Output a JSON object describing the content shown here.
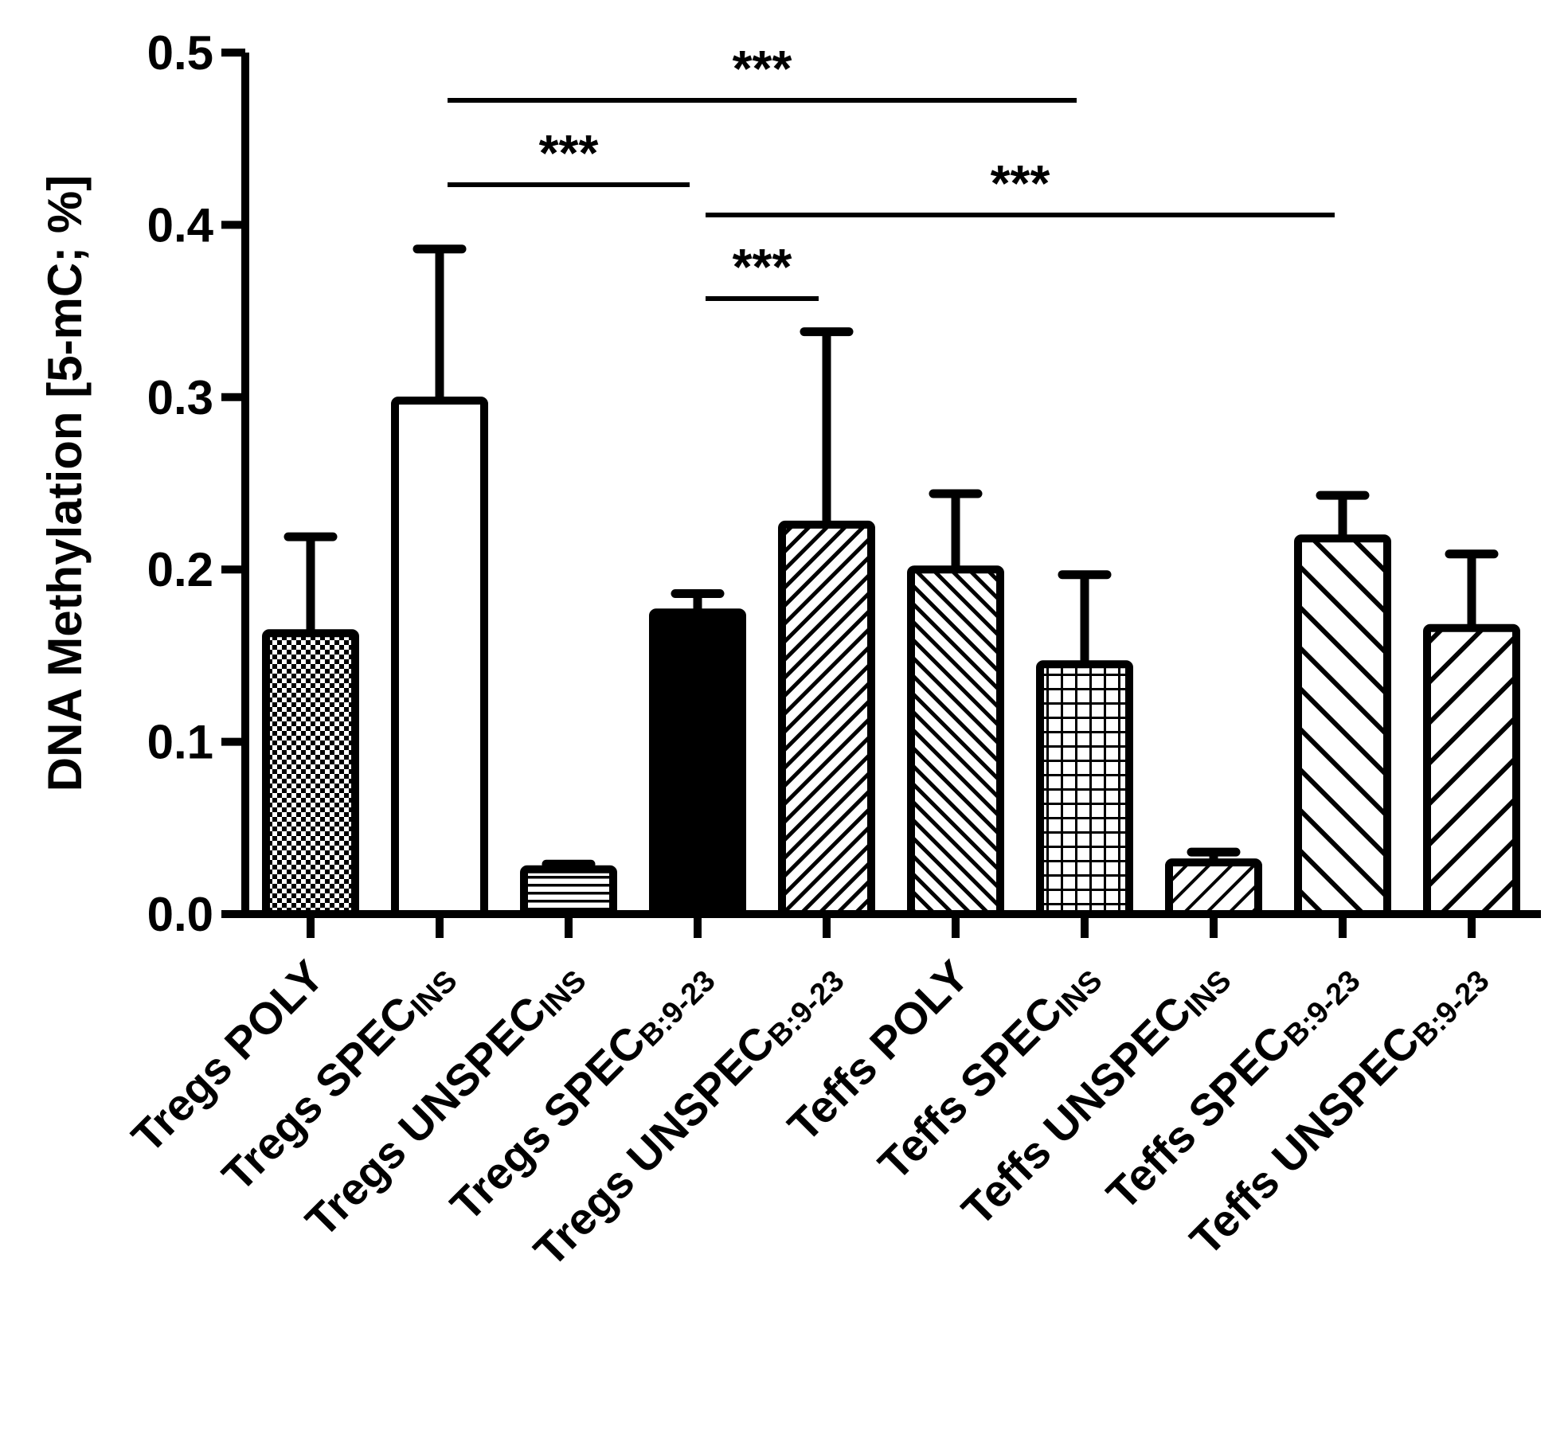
{
  "chart_data": {
    "type": "bar",
    "title": "",
    "xlabel": "",
    "ylabel": "DNA Methylation [5-mC; %]",
    "ylim": [
      0,
      0.5
    ],
    "yticks": [
      {
        "value": 0.0,
        "label": "0.0"
      },
      {
        "value": 0.1,
        "label": "0.1"
      },
      {
        "value": 0.2,
        "label": "0.2"
      },
      {
        "value": 0.3,
        "label": "0.3"
      },
      {
        "value": 0.4,
        "label": "0.4"
      },
      {
        "value": 0.5,
        "label": "0.5"
      }
    ],
    "bars": [
      {
        "label": "Tregs POLY",
        "label_sub": "",
        "value": 0.163,
        "error": 0.056,
        "pattern": "checker"
      },
      {
        "label": "Tregs SPEC",
        "label_sub": "INS",
        "value": 0.298,
        "error": 0.088,
        "pattern": "white"
      },
      {
        "label": "Tregs UNSPEC",
        "label_sub": "INS",
        "value": 0.026,
        "error": 0.003,
        "pattern": "hstripes"
      },
      {
        "label": "Tregs SPEC",
        "label_sub": "B:9-23",
        "value": 0.175,
        "error": 0.011,
        "pattern": "black"
      },
      {
        "label": "Tregs UNSPEC",
        "label_sub": "B:9-23",
        "value": 0.226,
        "error": 0.112,
        "pattern": "fine-diag-up"
      },
      {
        "label": "Teffs POLY",
        "label_sub": "",
        "value": 0.2,
        "error": 0.044,
        "pattern": "diag-down-fine"
      },
      {
        "label": "Teffs SPEC",
        "label_sub": "INS",
        "value": 0.145,
        "error": 0.052,
        "pattern": "grid"
      },
      {
        "label": "Teffs UNSPEC",
        "label_sub": "INS",
        "value": 0.03,
        "error": 0.006,
        "pattern": "diag-up-sparse"
      },
      {
        "label": "Teffs SPEC",
        "label_sub": "B:9-23",
        "value": 0.218,
        "error": 0.025,
        "pattern": "diag-down-wide"
      },
      {
        "label": "Teffs UNSPEC",
        "label_sub": "B:9-23",
        "value": 0.166,
        "error": 0.043,
        "pattern": "diag-up-wide"
      }
    ],
    "significance": [
      {
        "from": 1,
        "to": 6,
        "label": "***"
      },
      {
        "from": 1,
        "to": 3,
        "label": "***"
      },
      {
        "from": 3,
        "to": 8,
        "label": "***"
      },
      {
        "from": 3,
        "to": 4,
        "label": "***"
      }
    ]
  }
}
